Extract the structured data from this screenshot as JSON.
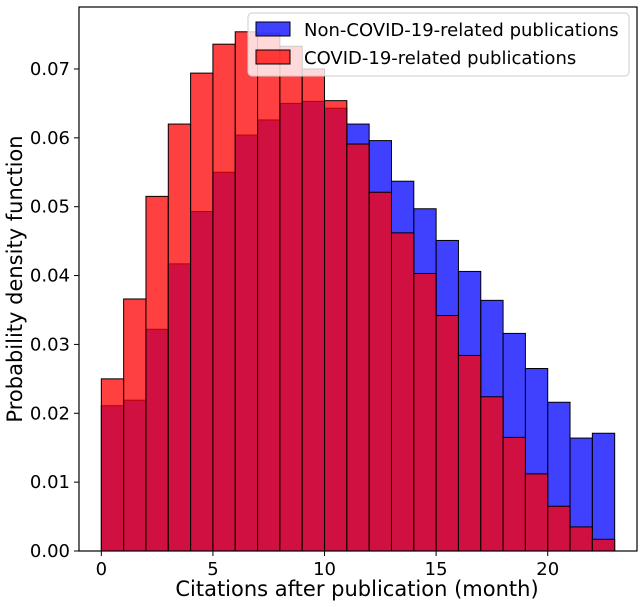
{
  "chart_data": {
    "type": "bar",
    "subtype": "overlapping-histogram",
    "title": "",
    "xlabel": "Citations after publication (month)",
    "ylabel": "Probability density function",
    "xlim": [
      -1,
      24
    ],
    "ylim": [
      0,
      0.079
    ],
    "xticks": [
      0,
      5,
      10,
      15,
      20
    ],
    "yticks": [
      0.0,
      0.01,
      0.02,
      0.03,
      0.04,
      0.05,
      0.06,
      0.07
    ],
    "ytick_labels": [
      "0.00",
      "0.01",
      "0.02",
      "0.03",
      "0.04",
      "0.05",
      "0.06",
      "0.07"
    ],
    "bin_edges": [
      0,
      1,
      2,
      3,
      4,
      5,
      6,
      7,
      8,
      9,
      10,
      11,
      12,
      13,
      14,
      15,
      16,
      17,
      18,
      19,
      20,
      21,
      22,
      23
    ],
    "legend_position": "top-right",
    "series": [
      {
        "name": "Non-COVID-19-related publications",
        "color": "#0000ff",
        "alpha": 0.75,
        "values": [
          0.0211,
          0.0219,
          0.0322,
          0.0417,
          0.0493,
          0.055,
          0.0604,
          0.0626,
          0.065,
          0.0653,
          0.0643,
          0.062,
          0.0596,
          0.0537,
          0.0497,
          0.0451,
          0.0406,
          0.0364,
          0.0316,
          0.0265,
          0.0216,
          0.0164,
          0.0171
        ]
      },
      {
        "name": "COVID-19-related publications",
        "color": "#ff0000",
        "alpha": 0.75,
        "values": [
          0.025,
          0.0366,
          0.0515,
          0.062,
          0.0694,
          0.0736,
          0.0754,
          0.0752,
          0.0733,
          0.07,
          0.0654,
          0.0591,
          0.0521,
          0.0462,
          0.0403,
          0.0342,
          0.0284,
          0.0224,
          0.0165,
          0.0112,
          0.0065,
          0.0035,
          0.0017
        ]
      }
    ]
  }
}
